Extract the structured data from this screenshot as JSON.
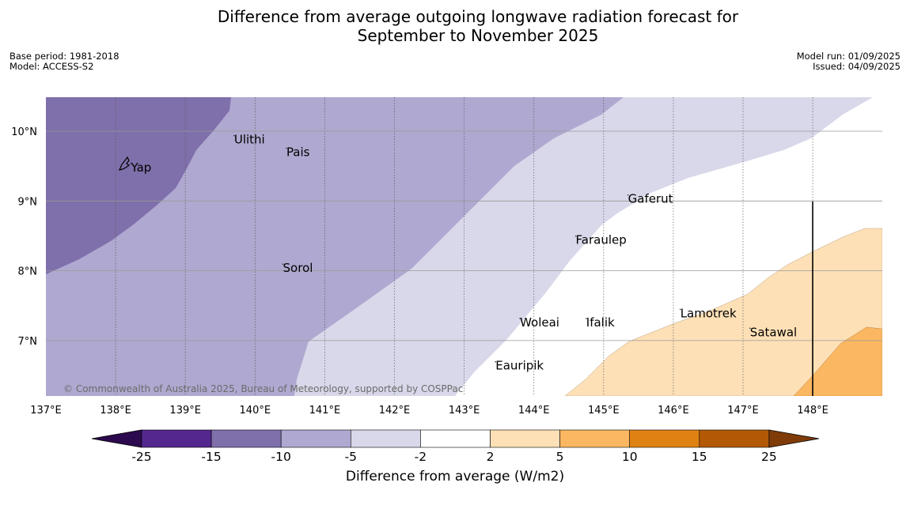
{
  "title_line1": "Difference from average outgoing longwave radiation forecast for",
  "title_line2": "September to November 2025",
  "meta_left": {
    "base_period": "Base period: 1981-2018",
    "model": "Model: ACCESS-S2"
  },
  "meta_right": {
    "model_run": "Model run: 01/09/2025",
    "issued": "Issued: 04/09/2025"
  },
  "copyright": "© Commonwealth of Australia 2025, Bureau of Meteorology, supported by COSPPac",
  "x_ticks": [
    "137°E",
    "138°E",
    "139°E",
    "140°E",
    "141°E",
    "142°E",
    "143°E",
    "144°E",
    "145°E",
    "146°E",
    "147°E",
    "148°E"
  ],
  "y_ticks": [
    "10°N",
    "9°N",
    "8°N",
    "7°N"
  ],
  "places": [
    {
      "name": "Yap",
      "lon": 138.22,
      "lat": 9.48
    },
    {
      "name": "Ulithi",
      "lon": 139.7,
      "lat": 9.88
    },
    {
      "name": "Pais",
      "lon": 140.45,
      "lat": 9.7
    },
    {
      "name": "Gaferut",
      "lon": 145.35,
      "lat": 9.03
    },
    {
      "name": "Faraulep",
      "lon": 144.6,
      "lat": 8.44
    },
    {
      "name": "Sorol",
      "lon": 140.4,
      "lat": 8.04
    },
    {
      "name": "Lamotrek",
      "lon": 146.1,
      "lat": 7.39
    },
    {
      "name": "Woleai",
      "lon": 143.8,
      "lat": 7.26
    },
    {
      "name": "Ifalik",
      "lon": 144.75,
      "lat": 7.26
    },
    {
      "name": "Satawal",
      "lon": 147.1,
      "lat": 7.12
    },
    {
      "name": "Eauripik",
      "lon": 143.45,
      "lat": 6.64
    }
  ],
  "colorbar": {
    "title": "Difference from average (W/m2)",
    "labels": [
      "-25",
      "-15",
      "-10",
      "-5",
      "-2",
      "2",
      "5",
      "10",
      "15",
      "25"
    ],
    "colors": [
      "#54278f",
      "#7f6fab",
      "#afa8d0",
      "#d8d8ea",
      "#ffffff",
      "#fde0b6",
      "#fbb762",
      "#e08213",
      "#b35906"
    ],
    "under_color": "#2d0a4f",
    "over_color": "#7f3b08"
  }
}
